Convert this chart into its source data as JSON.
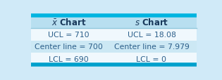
{
  "header_left": "$\\bar{x}$ Chart",
  "header_right": "$s$ Chart",
  "rows": [
    {
      "left": "UCL = 710",
      "right": "UCL = 18.08",
      "shaded": false
    },
    {
      "left": "Center line = 700",
      "right": "Center line = 7.979",
      "shaded": true
    },
    {
      "left": "LCL = 690",
      "right": "LCL = 0",
      "shaded": false
    }
  ],
  "header_bg": "#b8dff0",
  "row_shaded_bg": "#cce8f4",
  "row_plain_bg": "#f0f8fd",
  "top_border_color": "#00b4e0",
  "bot_border_color": "#00a0cc",
  "divider_color": "#90c8dc",
  "text_color": "#2c5f8a",
  "header_text_color": "#1a3a5c",
  "outer_bg": "#d0eaf8",
  "border_lw": 4.0,
  "divider_lw": 1.0,
  "header_fontsize": 8.5,
  "row_fontsize": 7.8
}
